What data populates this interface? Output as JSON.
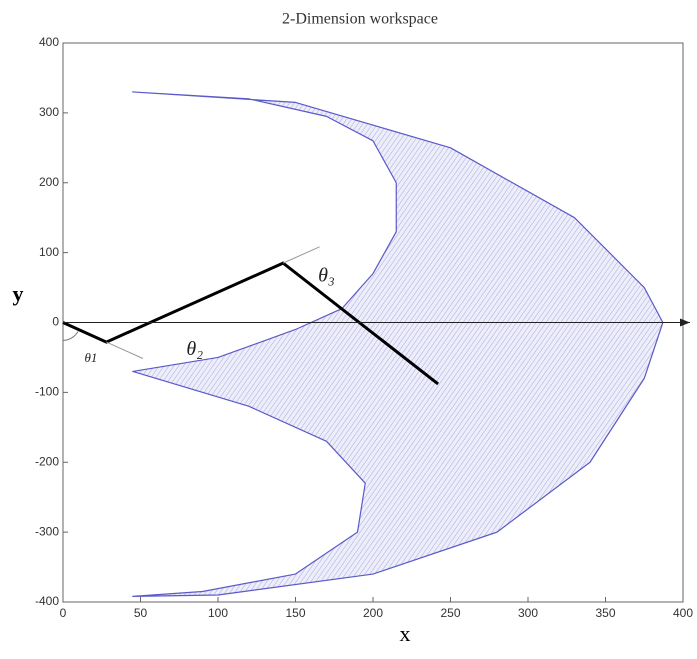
{
  "chart_data": {
    "type": "workspace",
    "title": "2-Dimension workspace",
    "xlabel": "x",
    "ylabel": "y",
    "xlim": [
      0,
      400
    ],
    "ylim": [
      -400,
      400
    ],
    "xticks": [
      0,
      50,
      100,
      150,
      200,
      250,
      300,
      350,
      400
    ],
    "yticks": [
      -400,
      -300,
      -200,
      -100,
      0,
      100,
      200,
      300,
      400
    ],
    "series": [
      {
        "color": "#5a5ac8",
        "fill": true,
        "x": [
          45,
          150,
          250,
          330,
          375,
          387,
          375,
          340,
          280,
          200,
          100,
          45,
          90,
          150,
          190,
          195,
          170,
          120,
          45,
          100,
          150,
          180,
          200,
          215,
          215,
          200,
          170,
          120,
          45
        ],
        "y": [
          330,
          315,
          250,
          150,
          50,
          0,
          -80,
          -200,
          -300,
          -360,
          -390,
          -392,
          -385,
          -360,
          -300,
          -230,
          -170,
          -120,
          -70,
          -50,
          -10,
          20,
          70,
          130,
          200,
          260,
          295,
          320,
          330
        ]
      },
      {
        "color": "#000000",
        "fill": false,
        "x": [
          0,
          28,
          142,
          242
        ],
        "y": [
          0,
          -28,
          85,
          -88
        ]
      }
    ],
    "annotations": [
      "θ1",
      "θ₂",
      "θ₃"
    ]
  }
}
